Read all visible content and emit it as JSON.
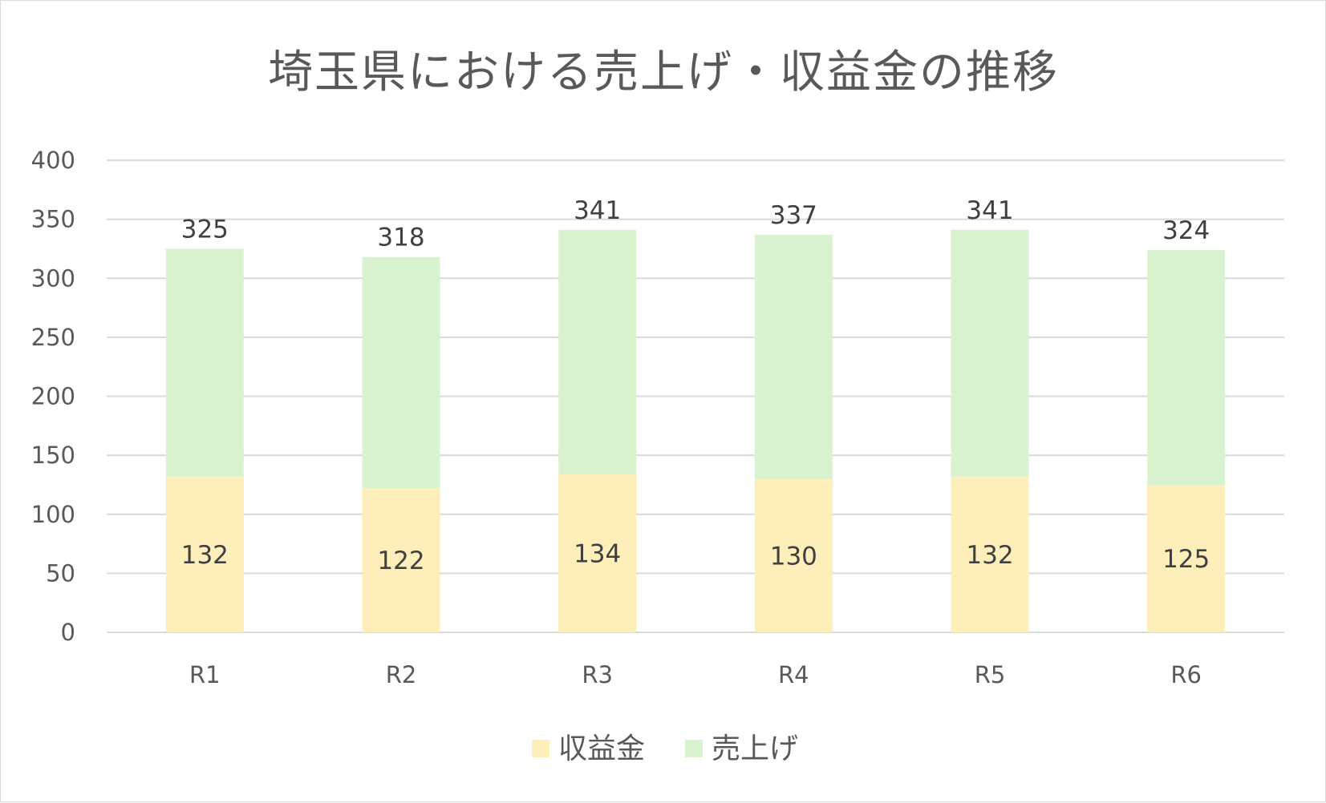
{
  "chart_data": {
    "type": "bar",
    "stacked": true,
    "title": "埼玉県における売上げ・収益金の推移",
    "categories": [
      "R1",
      "R2",
      "R3",
      "R4",
      "R5",
      "R6"
    ],
    "series": [
      {
        "name": "収益金",
        "values": [
          132,
          122,
          134,
          130,
          132,
          125
        ],
        "color": "#fdeeba"
      },
      {
        "name": "売上げ",
        "values": [
          193,
          196,
          207,
          207,
          209,
          199
        ],
        "color": "#d9f2d0"
      }
    ],
    "totals": [
      325,
      318,
      341,
      337,
      341,
      324
    ],
    "revenue_labels": [
      "132",
      "122",
      "134",
      "130",
      "132",
      "125"
    ],
    "total_labels": [
      "325",
      "318",
      "341",
      "337",
      "341",
      "324"
    ],
    "ylim": [
      0,
      400
    ],
    "yticks": [
      "0",
      "50",
      "100",
      "150",
      "200",
      "250",
      "300",
      "350",
      "400"
    ],
    "grid": true,
    "legend_position": "bottom",
    "xlabel": "",
    "ylabel": ""
  }
}
